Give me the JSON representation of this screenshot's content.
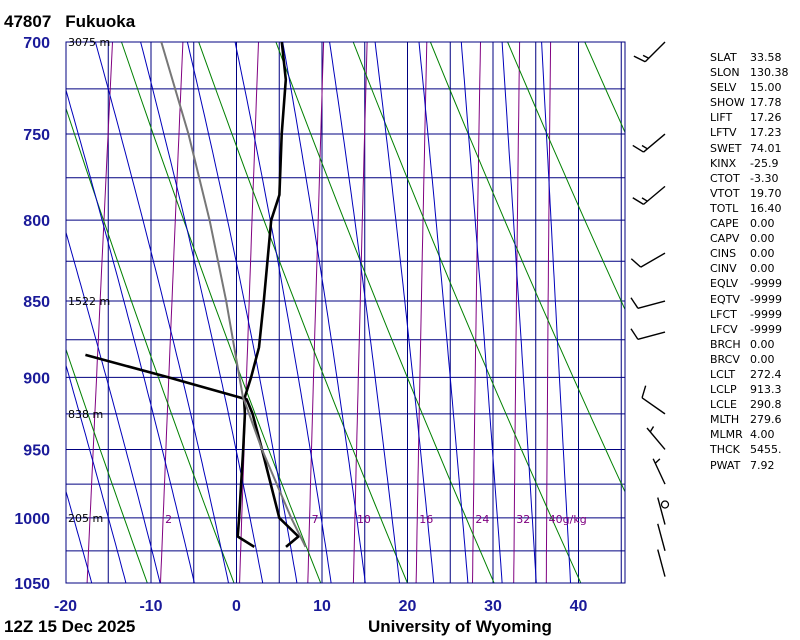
{
  "header": {
    "station_id": "47807",
    "station_name": "Fukuoka"
  },
  "footer": {
    "time": "12Z 15 Dec 2025",
    "credit": "University of Wyoming"
  },
  "chart_data": {
    "type": "line",
    "pressure_levels": [
      700,
      750,
      800,
      850,
      900,
      950,
      1000,
      1050
    ],
    "temperature_ticks": [
      -20,
      -10,
      0,
      10,
      20,
      30,
      40
    ],
    "height_labels": [
      {
        "p": 700,
        "label": "3075 m"
      },
      {
        "p": 850,
        "label": "1522 m"
      },
      {
        "p": 925,
        "label": "838 m"
      },
      {
        "p": 1000,
        "label": "205 m"
      }
    ],
    "mixing_ratio_labels": [
      {
        "w": 2,
        "label": "2"
      },
      {
        "w": 7,
        "label": "7"
      },
      {
        "w": 10,
        "label": "10"
      },
      {
        "w": 16,
        "label": "16"
      },
      {
        "w": 24,
        "label": "24"
      },
      {
        "w": 32,
        "label": "32"
      },
      {
        "w": 40,
        "label": "40g/kg"
      }
    ],
    "series": [
      {
        "role": "temperature",
        "points": [
          [
            1022,
            2.5
          ],
          [
            1014,
            0.4
          ],
          [
            1000,
            0.3
          ],
          [
            950,
            -0.2
          ],
          [
            925,
            -0.5
          ],
          [
            915,
            -0.8
          ],
          [
            900,
            -0.3
          ],
          [
            880,
            0.2
          ],
          [
            850,
            0.1
          ],
          [
            800,
            -0.2
          ],
          [
            785,
            0.4
          ],
          [
            750,
            -0.2
          ],
          [
            720,
            -0.5
          ],
          [
            700,
            -1.5
          ]
        ]
      },
      {
        "role": "dewpoint",
        "points": [
          [
            1022,
            6.2
          ],
          [
            1014,
            7.5
          ],
          [
            1000,
            5.0
          ],
          [
            950,
            2.0
          ],
          [
            925,
            0.4
          ],
          [
            915,
            -0.5
          ],
          [
            900,
            -10.0
          ],
          [
            885,
            -20.0
          ]
        ]
      },
      {
        "role": "parcel",
        "points": [
          [
            1022,
            8.5
          ],
          [
            1000,
            6.4
          ],
          [
            950,
            2.0
          ],
          [
            913,
            -1.0
          ],
          [
            850,
            -4.3
          ],
          [
            800,
            -7.4
          ],
          [
            750,
            -11.1
          ],
          [
            700,
            -15.6
          ]
        ]
      }
    ],
    "wind_barbs": [
      {
        "p": 700,
        "speed_kt": 15,
        "direction_deg": 225
      },
      {
        "p": 750,
        "speed_kt": 15,
        "direction_deg": 230
      },
      {
        "p": 780,
        "speed_kt": 15,
        "direction_deg": 230
      },
      {
        "p": 820,
        "speed_kt": 10,
        "direction_deg": 240
      },
      {
        "p": 850,
        "speed_kt": 10,
        "direction_deg": 255
      },
      {
        "p": 870,
        "speed_kt": 10,
        "direction_deg": 255
      },
      {
        "p": 925,
        "speed_kt": 10,
        "direction_deg": 305
      },
      {
        "p": 950,
        "speed_kt": 5,
        "direction_deg": 320
      },
      {
        "p": 975,
        "speed_kt": 5,
        "direction_deg": 335
      },
      {
        "p": 990,
        "speed_kt": 0,
        "direction_deg": 0
      },
      {
        "p": 1005,
        "speed_kt": 2,
        "direction_deg": 345
      },
      {
        "p": 1025,
        "speed_kt": 2,
        "direction_deg": 345
      },
      {
        "p": 1045,
        "speed_kt": 2,
        "direction_deg": 345
      }
    ],
    "indices": [
      {
        "key": "SLAT",
        "value": "33.58"
      },
      {
        "key": "SLON",
        "value": "130.38"
      },
      {
        "key": "SELV",
        "value": "15.00"
      },
      {
        "key": "SHOW",
        "value": "17.78"
      },
      {
        "key": "LIFT",
        "value": "17.26"
      },
      {
        "key": "LFTV",
        "value": "17.23"
      },
      {
        "key": "SWET",
        "value": "74.01"
      },
      {
        "key": "KINX",
        "value": "-25.9"
      },
      {
        "key": "CTOT",
        "value": "-3.30"
      },
      {
        "key": "VTOT",
        "value": "19.70"
      },
      {
        "key": "TOTL",
        "value": "16.40"
      },
      {
        "key": "CAPE",
        "value": "0.00"
      },
      {
        "key": "CAPV",
        "value": "0.00"
      },
      {
        "key": "CINS",
        "value": "0.00"
      },
      {
        "key": "CINV",
        "value": "0.00"
      },
      {
        "key": "EQLV",
        "value": "-9999"
      },
      {
        "key": "EQTV",
        "value": "-9999"
      },
      {
        "key": "LFCT",
        "value": "-9999"
      },
      {
        "key": "LFCV",
        "value": "-9999"
      },
      {
        "key": "BRCH",
        "value": "0.00"
      },
      {
        "key": "BRCV",
        "value": "0.00"
      },
      {
        "key": "LCLT",
        "value": "272.4"
      },
      {
        "key": "LCLP",
        "value": "913.3"
      },
      {
        "key": "LCLE",
        "value": "290.8"
      },
      {
        "key": "MLTH",
        "value": "279.6"
      },
      {
        "key": "MLMR",
        "value": "4.00"
      },
      {
        "key": "THCK",
        "value": "5455."
      },
      {
        "key": "PWAT",
        "value": "7.92"
      }
    ],
    "colors": {
      "axis_label": "#1a1a99",
      "grid": "#000080",
      "dry_adiabat": "#008000",
      "moist_adiabat": "#0000bb",
      "mixing_ratio": "#800080",
      "temperature": "#000000",
      "dewpoint": "#000000",
      "parcel": "#777777"
    }
  }
}
